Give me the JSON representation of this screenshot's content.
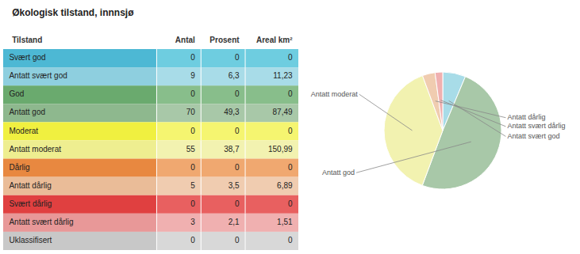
{
  "chart_data": [
    {
      "type": "table",
      "title": "Økologisk tilstand, innnsjø",
      "y_label": "Tilstand",
      "categories": [
        "Svært god",
        "Antatt svært god",
        "God",
        "Antatt god",
        "Moderat",
        "Antatt moderat",
        "Dårlig",
        "Antatt dårlig",
        "Svært dårlig",
        "Antatt svært dårlig",
        "Uklassifisert"
      ],
      "colors": [
        "#4db8d4",
        "#8ecfdf",
        "#6aaa6e",
        "#8eb88e",
        "#f0f040",
        "#eeee90",
        "#e88840",
        "#eabc98",
        "#e04040",
        "#e89898",
        "#c8c8c8"
      ],
      "series": [
        {
          "name": "Antal",
          "values": [
            0,
            9,
            0,
            70,
            0,
            55,
            0,
            5,
            0,
            3,
            0
          ],
          "colors": [
            "#6ecde0",
            "#a8dce8",
            "#88be8b",
            "#a8c8a8",
            "#f5f570",
            "#f2f2b0",
            "#f0a870",
            "#f0ccb0",
            "#e86060",
            "#f0b0b0",
            "#d8d8d8"
          ]
        },
        {
          "name": "Prosent",
          "values": [
            0,
            6.3,
            0,
            49.3,
            0,
            38.7,
            0,
            3.5,
            0,
            2.1,
            0
          ],
          "value_labels": [
            "0",
            "6,3",
            "0",
            "49,3",
            "0",
            "38,7",
            "0",
            "3,5",
            "0",
            "2,1",
            "0"
          ],
          "colors": [
            "#6ecde0",
            "#a8dce8",
            "#88be8b",
            "#a8c8a8",
            "#f5f570",
            "#f2f2b0",
            "#f0a870",
            "#f0ccb0",
            "#e86060",
            "#f0b0b0",
            "#d8d8d8"
          ]
        },
        {
          "name": "Areal km²",
          "values": [
            0,
            11.23,
            0,
            87.49,
            0,
            150.99,
            0,
            6.89,
            0,
            1.51,
            0
          ],
          "value_labels": [
            "0",
            "11,23",
            "0",
            "87,49",
            "0",
            "150,99",
            "0",
            "6,89",
            "0",
            "1,51",
            "0"
          ],
          "colors": [
            "#6ecde0",
            "#a8dce8",
            "#88be8b",
            "#a8c8a8",
            "#f5f570",
            "#f2f2b0",
            "#f0a870",
            "#f0ccb0",
            "#e86060",
            "#f0b0b0",
            "#d8d8d8"
          ]
        }
      ]
    },
    {
      "type": "pie",
      "categories": [
        "Antatt svært god",
        "Antatt god",
        "Antatt moderat",
        "Antatt dårlig",
        "Antatt svært dårlig"
      ],
      "values": [
        6.3,
        49.3,
        38.7,
        3.5,
        2.1
      ],
      "colors": [
        "#a8dce8",
        "#a8c8a8",
        "#f2f2b0",
        "#f0ccb0",
        "#f0b0b0"
      ]
    }
  ]
}
